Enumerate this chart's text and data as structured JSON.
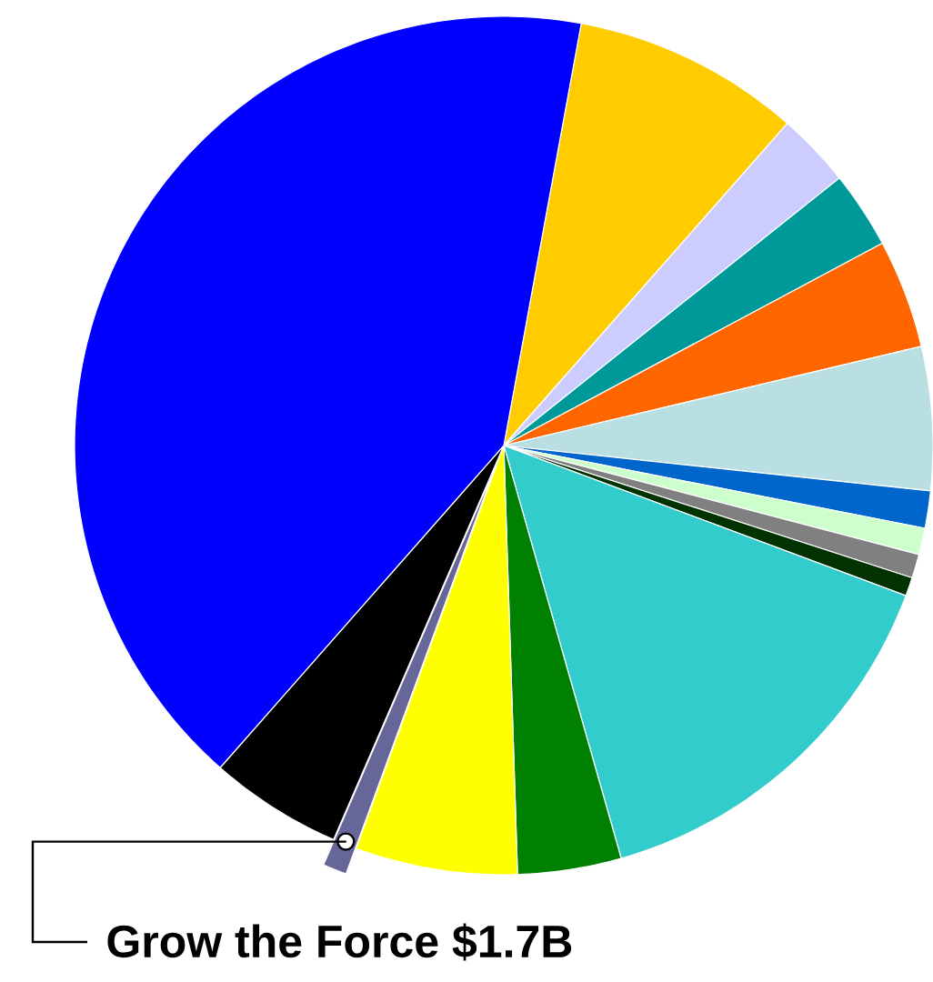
{
  "chart_data": {
    "type": "pie",
    "categories": [
      null,
      null,
      null,
      null,
      null,
      null,
      null,
      null,
      null,
      null,
      null,
      null,
      "Grow the Force $1.7B",
      null,
      null
    ],
    "values": [
      8.6,
      2.8,
      2.9,
      4.1,
      5.4,
      1.4,
      1.0,
      0.9,
      0.7,
      14.9,
      3.9,
      6.1,
      0.9,
      5.0,
      41.4
    ],
    "colors": [
      "#ffcc00",
      "#ccccff",
      "#009999",
      "#ff6600",
      "#b9dfe2",
      "#0066cc",
      "#ccffcc",
      "#808080",
      "#003300",
      "#33cccc",
      "#008000",
      "#ffff00",
      "#666699",
      "#000000",
      "#0000ff"
    ]
  }
}
